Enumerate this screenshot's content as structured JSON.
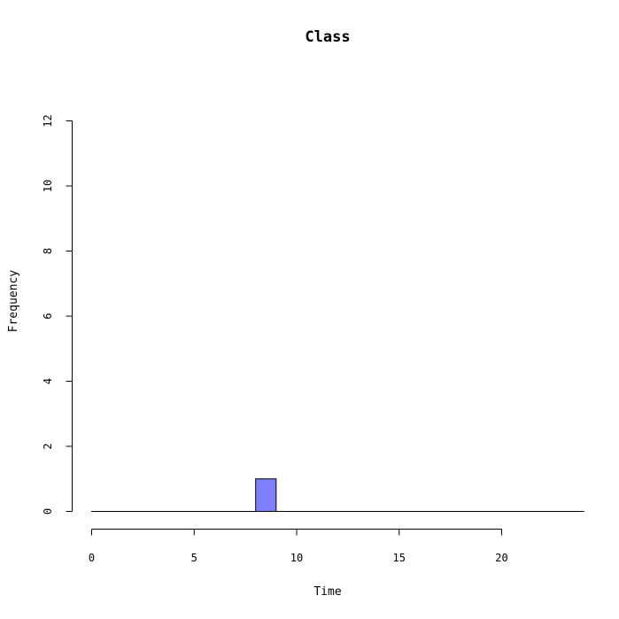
{
  "chart_data": {
    "type": "bar",
    "title": "Class",
    "xlabel": "Time",
    "ylabel": "Frequency",
    "xlim": [
      0,
      24
    ],
    "ylim": [
      0,
      12
    ],
    "x_ticks": [
      0,
      5,
      10,
      15,
      20
    ],
    "y_ticks": [
      0,
      2,
      4,
      6,
      8,
      10,
      12
    ],
    "x_tick_labels": [
      "0",
      "5",
      "10",
      "15",
      "20"
    ],
    "y_tick_labels": [
      "0",
      "2",
      "4",
      "6",
      "8",
      "10",
      "12"
    ],
    "bin_edges": [
      0,
      1,
      2,
      3,
      4,
      5,
      6,
      7,
      8,
      9,
      10,
      11,
      12,
      13,
      14,
      15,
      16,
      17,
      18,
      19,
      20,
      21,
      22,
      23,
      24
    ],
    "values": [
      0,
      0,
      0,
      0,
      0,
      0,
      0,
      0,
      1,
      0,
      0,
      0,
      0,
      0,
      0,
      0,
      0,
      0,
      0,
      0,
      0,
      0,
      0,
      0
    ],
    "bar_color": "#8080ff",
    "grid": false
  }
}
